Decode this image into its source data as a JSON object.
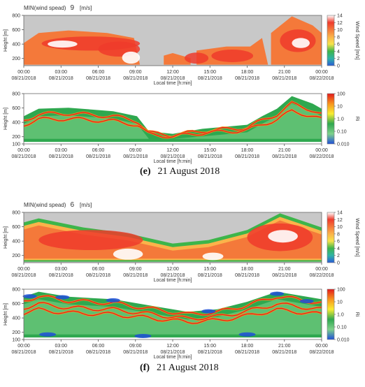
{
  "panels": [
    {
      "label": "(e)",
      "date": "21 August 2018",
      "min_title": "MIN(wind spead)",
      "min_value": "9",
      "min_unit": "[m/s]",
      "wind_chart": {
        "type": "heatmap",
        "ylabel": "Height [m]",
        "yticks": [
          200,
          400,
          600,
          800
        ],
        "ylim": [
          100,
          800
        ],
        "colorbar_label": "Wind Speed [m/s]",
        "colorbar_ticks": [
          "14",
          "12",
          "10",
          "8",
          "6",
          "4",
          "2",
          "0"
        ]
      },
      "ri_chart": {
        "type": "heatmap",
        "ylabel": "Height [m]",
        "yticks": [
          100,
          200,
          400,
          600,
          800
        ],
        "ylim": [
          100,
          800
        ],
        "colorbar_label": "Ri",
        "colorbar_ticks": [
          "100",
          "10",
          "1.0",
          "0.10",
          "0.010"
        ]
      }
    },
    {
      "label": "(f)",
      "date": "21 August 2018",
      "min_title": "MIN(wind spead)",
      "min_value": "6",
      "min_unit": "[m/s]",
      "wind_chart": {
        "type": "heatmap",
        "ylabel": "Height [m]",
        "yticks": [
          200,
          400,
          600,
          800
        ],
        "ylim": [
          100,
          800
        ],
        "colorbar_label": "Wind Speed [m/s]",
        "colorbar_ticks": [
          "14",
          "12",
          "10",
          "8",
          "6",
          "4",
          "2",
          "0"
        ]
      },
      "ri_chart": {
        "type": "heatmap",
        "ylabel": "Height [m]",
        "yticks": [
          100,
          200,
          400,
          600,
          800
        ],
        "ylim": [
          100,
          800
        ],
        "colorbar_label": "Ri",
        "colorbar_ticks": [
          "100",
          "10",
          "1.0",
          "0.10",
          "0.010"
        ]
      }
    }
  ],
  "chart_data": {
    "type": "heatmap",
    "xlabel": "Local time [h:min]",
    "x_ticks": [
      "00:00",
      "03:00",
      "06:00",
      "09:00",
      "12:00",
      "15:00",
      "18:00",
      "21:00",
      "00:00"
    ],
    "x_dates": [
      "08/21/2018",
      "08/21/2018",
      "08/21/2018",
      "08/21/2018",
      "08/21/2018",
      "08/21/2018",
      "08/21/2018",
      "08/21/2018",
      "08/22/2018"
    ],
    "colors": {
      "no_data": "#c8c8c8",
      "wind_scale": [
        "#ffffff",
        "#ef3b2c",
        "#f4793a",
        "#fbb34a",
        "#f6e34a",
        "#3db54a",
        "#2fb4a6",
        "#2a5bd7"
      ],
      "ri_scale": [
        "#e31a1c",
        "#f7941d",
        "#f9ed32",
        "#2fa84f",
        "#7fd18b",
        "#1f4fd8"
      ]
    }
  }
}
